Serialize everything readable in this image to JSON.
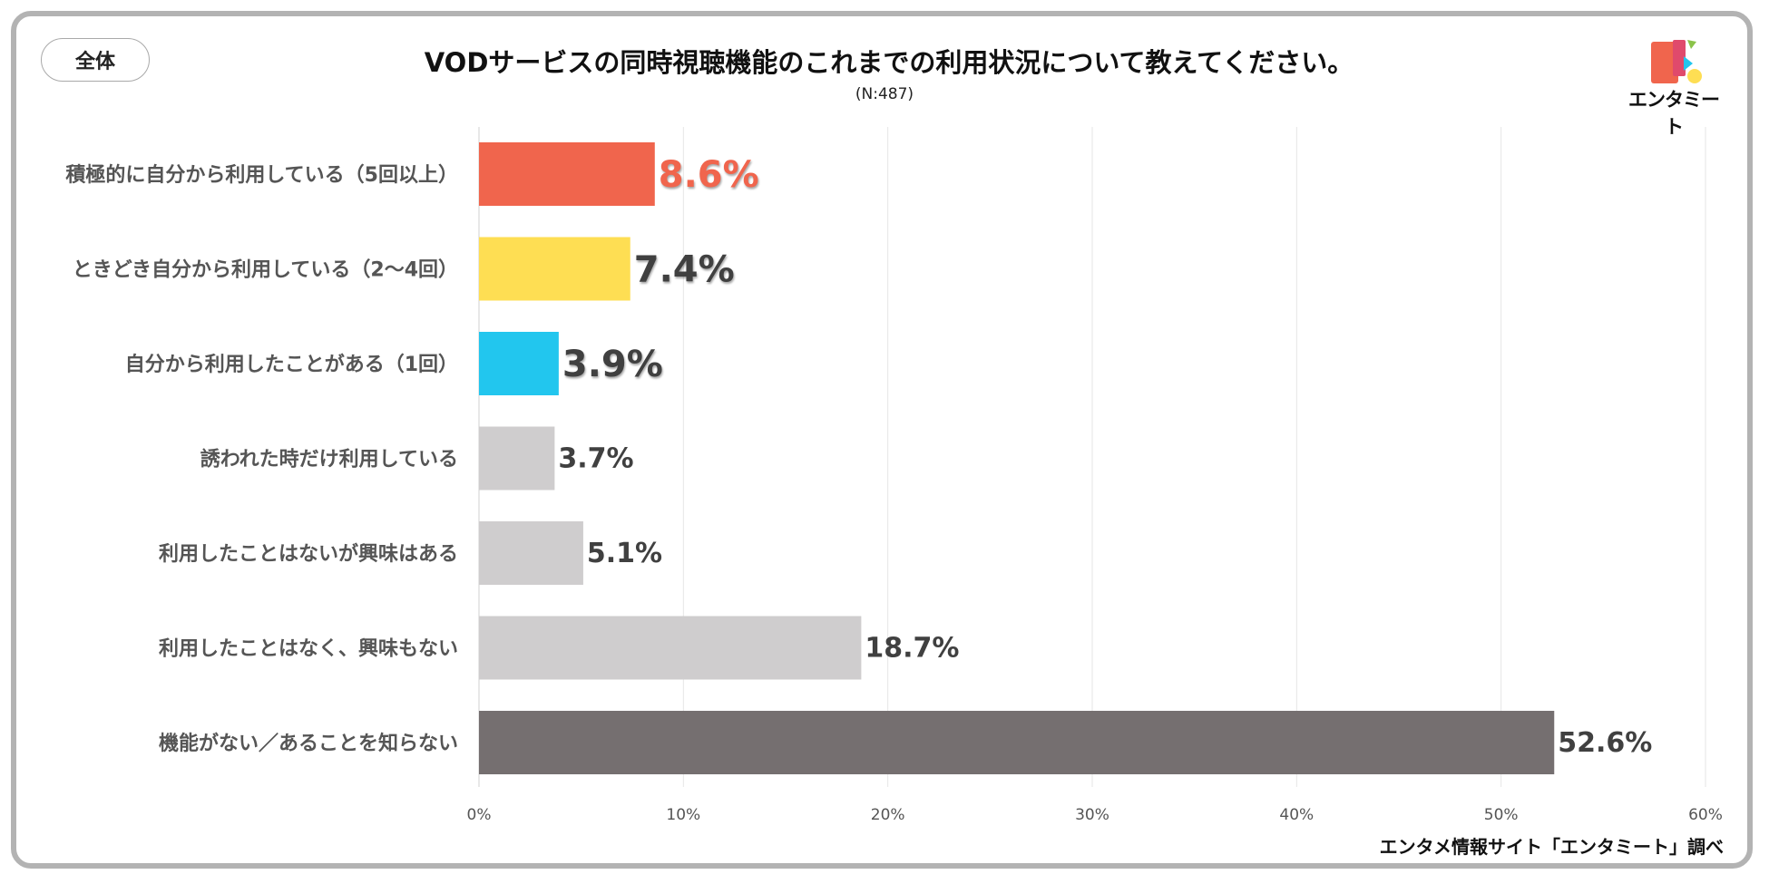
{
  "badge": "全体",
  "title": "VODサービスの同時視聴機能のこれまでの利用状況について教えてください。",
  "subtitle": "(N:487)",
  "footer": "エンタメ情報サイト「エンタミート」調べ",
  "logo": {
    "text": "エンタミート",
    "icon": "entameet-logo-icon"
  },
  "colors": {
    "red": "#f0654d",
    "yellow": "#fede53",
    "blue": "#22c6ee",
    "lightgray": "#cfcdce",
    "darkgray": "#756f70"
  },
  "chart_data": {
    "type": "bar",
    "orientation": "horizontal",
    "title": "VODサービスの同時視聴機能のこれまでの利用状況について教えてください。",
    "subtitle": "(N:487)",
    "categories": [
      "積極的に自分から利用している（5回以上）",
      "ときどき自分から利用している（2〜4回）",
      "自分から利用したことがある（1回）",
      "誘われた時だけ利用している",
      "利用したことはないが興味はある",
      "利用したことはなく、興味もない",
      "機能がない／あることを知らない"
    ],
    "values": [
      8.6,
      7.4,
      3.9,
      3.7,
      5.1,
      18.7,
      52.6
    ],
    "value_labels": [
      "8.6%",
      "7.4%",
      "3.9%",
      "3.7%",
      "5.1%",
      "18.7%",
      "52.6%"
    ],
    "bar_colors": [
      "#f0654d",
      "#fede53",
      "#22c6ee",
      "#cfcdce",
      "#cfcdce",
      "#cfcdce",
      "#756f70"
    ],
    "label_colors": [
      "#f0654d",
      "#404040",
      "#404040",
      "#404040",
      "#404040",
      "#404040",
      "#404040"
    ],
    "label_emphasis": [
      true,
      true,
      true,
      false,
      false,
      false,
      false
    ],
    "xlim": [
      0,
      60
    ],
    "xticks": [
      0,
      10,
      20,
      30,
      40,
      50,
      60
    ],
    "xtick_labels": [
      "0%",
      "10%",
      "20%",
      "30%",
      "40%",
      "50%",
      "60%"
    ],
    "grid": "vertical",
    "legend": "none"
  }
}
